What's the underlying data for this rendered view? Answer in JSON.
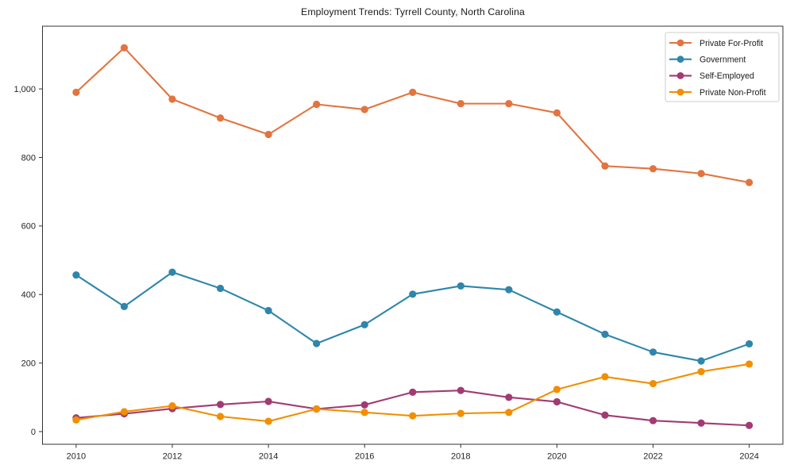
{
  "figure": {
    "title": "Employment Trends: Tyrrell County, North Carolina",
    "background": "#ffffff"
  },
  "chart_data": {
    "type": "line",
    "title": "Employment Trends: Tyrrell County, North Carolina",
    "xlabel": "",
    "ylabel": "",
    "x": [
      2010,
      2011,
      2012,
      2013,
      2014,
      2015,
      2016,
      2017,
      2018,
      2019,
      2020,
      2021,
      2022,
      2023,
      2024
    ],
    "xlim": [
      2009.3,
      2024.7
    ],
    "ylim": [
      -37,
      1183
    ],
    "x_ticks": [
      2010,
      2012,
      2014,
      2016,
      2018,
      2020,
      2022,
      2024
    ],
    "x_tick_labels": [
      "2010",
      "2012",
      "2014",
      "2016",
      "2018",
      "2020",
      "2022",
      "2024"
    ],
    "y_ticks": [
      0,
      200,
      400,
      600,
      800,
      1000
    ],
    "y_tick_labels": [
      "0",
      "200",
      "400",
      "600",
      "800",
      "1,000"
    ],
    "grid": false,
    "axis_color": "#333333",
    "tick_label_color": "#262626",
    "legend": {
      "position": "upper right",
      "border_color": "#cccccc",
      "background": "#ffffff"
    },
    "series": [
      {
        "name": "Private For-Profit",
        "color": "#E2743F",
        "values": [
          990,
          1120,
          970,
          915,
          867,
          955,
          940,
          990,
          957,
          957,
          930,
          775,
          767,
          753,
          727
        ]
      },
      {
        "name": "Government",
        "color": "#2E86AB",
        "values": [
          457,
          365,
          465,
          418,
          353,
          257,
          312,
          401,
          425,
          414,
          349,
          284,
          232,
          206,
          256
        ]
      },
      {
        "name": "Self-Employed",
        "color": "#A23B72",
        "values": [
          40,
          52,
          67,
          79,
          88,
          66,
          78,
          115,
          120,
          100,
          87,
          48,
          32,
          25,
          18
        ]
      },
      {
        "name": "Private Non-Profit",
        "color": "#F18F01",
        "values": [
          34,
          58,
          75,
          44,
          30,
          66,
          56,
          46,
          53,
          56,
          123,
          160,
          140,
          175,
          197
        ]
      }
    ]
  }
}
